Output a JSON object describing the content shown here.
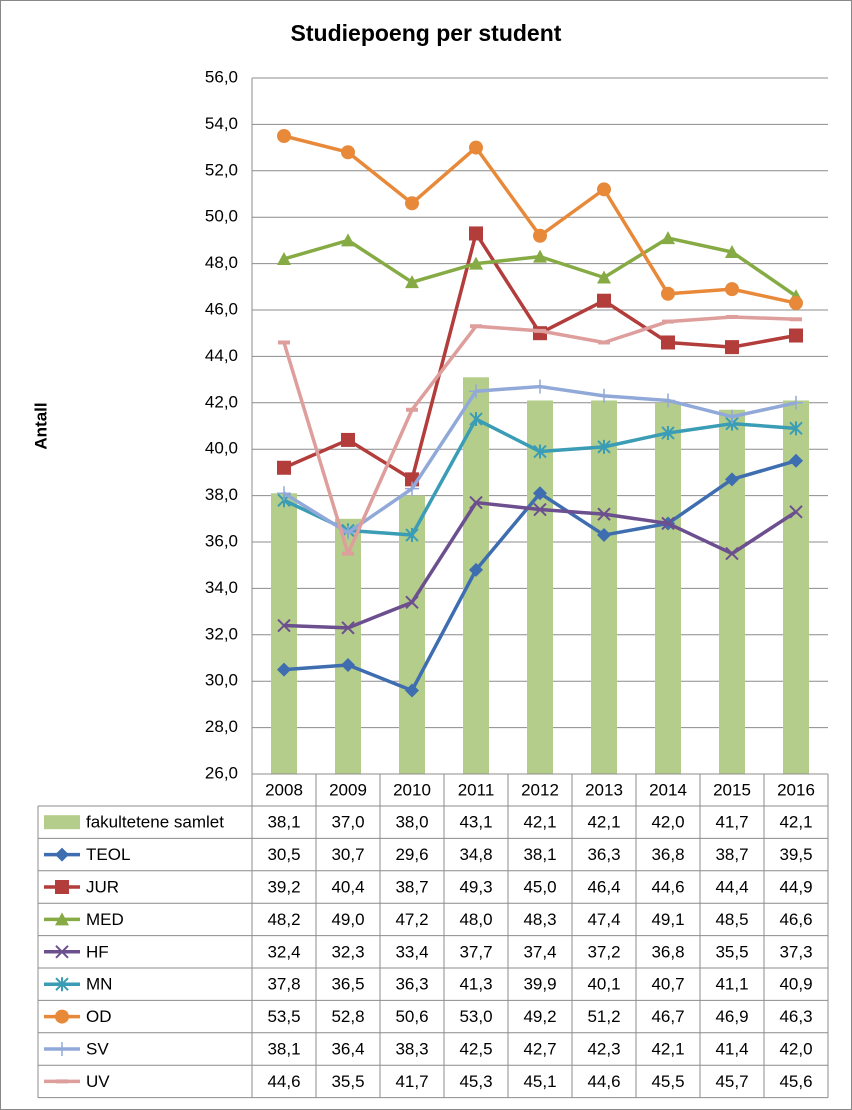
{
  "chart_data": {
    "type": "line",
    "title": "Studiepoeng per student",
    "y_label": "Antall",
    "categories": [
      "2008",
      "2009",
      "2010",
      "2011",
      "2012",
      "2013",
      "2014",
      "2015",
      "2016"
    ],
    "ylim": [
      26,
      56
    ],
    "yticks": [
      {
        "value": 26,
        "label": "26,0"
      },
      {
        "value": 28,
        "label": "28,0"
      },
      {
        "value": 30,
        "label": "30,0"
      },
      {
        "value": 32,
        "label": "32,0"
      },
      {
        "value": 34,
        "label": "34,0"
      },
      {
        "value": 36,
        "label": "36,0"
      },
      {
        "value": 38,
        "label": "38,0"
      },
      {
        "value": 40,
        "label": "40,0"
      },
      {
        "value": 42,
        "label": "42,0"
      },
      {
        "value": 44,
        "label": "44,0"
      },
      {
        "value": 46,
        "label": "46,0"
      },
      {
        "value": 48,
        "label": "48,0"
      },
      {
        "value": 50,
        "label": "50,0"
      },
      {
        "value": 52,
        "label": "52,0"
      },
      {
        "value": 54,
        "label": "54,0"
      },
      {
        "value": 56,
        "label": "56,0"
      }
    ],
    "grid": true,
    "series": [
      {
        "name": "fakultetene samlet",
        "type": "bar",
        "color": "#b5cd8b",
        "values": [
          38.1,
          37.0,
          38.0,
          43.1,
          42.1,
          42.1,
          42.0,
          41.7,
          42.1
        ],
        "value_labels": [
          "38,1",
          "37,0",
          "38,0",
          "43,1",
          "42,1",
          "42,1",
          "42,0",
          "41,7",
          "42,1"
        ]
      },
      {
        "name": "TEOL",
        "marker": "diamond",
        "color": "#3e6db0",
        "values": [
          30.5,
          30.7,
          29.6,
          34.8,
          38.1,
          36.3,
          36.8,
          38.7,
          39.5
        ],
        "value_labels": [
          "30,5",
          "30,7",
          "29,6",
          "34,8",
          "38,1",
          "36,3",
          "36,8",
          "38,7",
          "39,5"
        ]
      },
      {
        "name": "JUR",
        "marker": "square",
        "color": "#b23d3b",
        "values": [
          39.2,
          40.4,
          38.7,
          49.3,
          45.0,
          46.4,
          44.6,
          44.4,
          44.9
        ],
        "value_labels": [
          "39,2",
          "40,4",
          "38,7",
          "49,3",
          "45,0",
          "46,4",
          "44,6",
          "44,4",
          "44,9"
        ]
      },
      {
        "name": "MED",
        "marker": "triangle",
        "color": "#86ab45",
        "values": [
          48.2,
          49.0,
          47.2,
          48.0,
          48.3,
          47.4,
          49.1,
          48.5,
          46.6
        ],
        "value_labels": [
          "48,2",
          "49,0",
          "47,2",
          "48,0",
          "48,3",
          "47,4",
          "49,1",
          "48,5",
          "46,6"
        ]
      },
      {
        "name": "HF",
        "marker": "x",
        "color": "#6c4f8e",
        "values": [
          32.4,
          32.3,
          33.4,
          37.7,
          37.4,
          37.2,
          36.8,
          35.5,
          37.3
        ],
        "value_labels": [
          "32,4",
          "32,3",
          "33,4",
          "37,7",
          "37,4",
          "37,2",
          "36,8",
          "35,5",
          "37,3"
        ]
      },
      {
        "name": "MN",
        "marker": "star",
        "color": "#3a9db5",
        "values": [
          37.8,
          36.5,
          36.3,
          41.3,
          39.9,
          40.1,
          40.7,
          41.1,
          40.9
        ],
        "value_labels": [
          "37,8",
          "36,5",
          "36,3",
          "41,3",
          "39,9",
          "40,1",
          "40,7",
          "41,1",
          "40,9"
        ]
      },
      {
        "name": "OD",
        "marker": "circle",
        "color": "#e8893a",
        "values": [
          53.5,
          52.8,
          50.6,
          53.0,
          49.2,
          51.2,
          46.7,
          46.9,
          46.3
        ],
        "value_labels": [
          "53,5",
          "52,8",
          "50,6",
          "53,0",
          "49,2",
          "51,2",
          "46,7",
          "46,9",
          "46,3"
        ]
      },
      {
        "name": "SV",
        "marker": "plus",
        "color": "#91a9d8",
        "values": [
          38.1,
          36.4,
          38.3,
          42.5,
          42.7,
          42.3,
          42.1,
          41.4,
          42.0
        ],
        "value_labels": [
          "38,1",
          "36,4",
          "38,3",
          "42,5",
          "42,7",
          "42,3",
          "42,1",
          "41,4",
          "42,0"
        ]
      },
      {
        "name": "UV",
        "marker": "dash",
        "color": "#dd9e9c",
        "values": [
          44.6,
          35.5,
          41.7,
          45.3,
          45.1,
          44.6,
          45.5,
          45.7,
          45.6
        ],
        "value_labels": [
          "44,6",
          "35,5",
          "41,7",
          "45,3",
          "45,1",
          "44,6",
          "45,5",
          "45,7",
          "45,6"
        ]
      }
    ]
  }
}
